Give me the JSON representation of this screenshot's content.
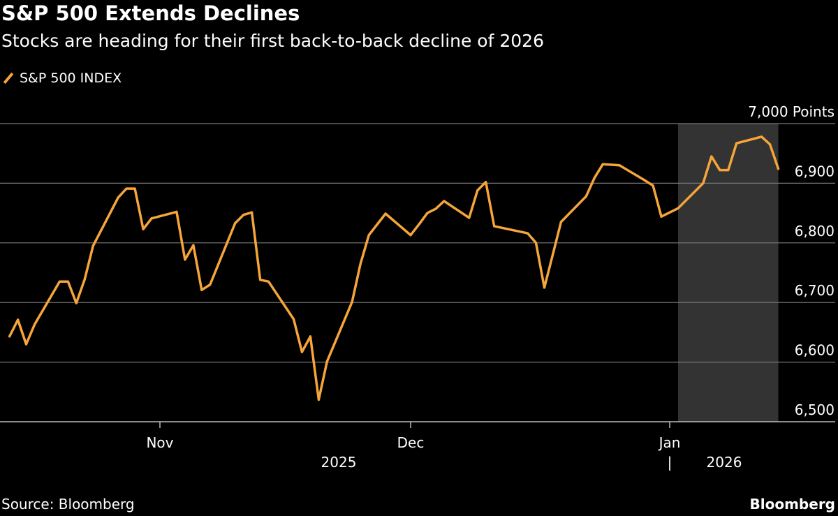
{
  "chart_data": {
    "type": "line",
    "title": "S&P 500 Extends Declines",
    "subtitle": "Stocks are heading for their first back-to-back decline of 2026",
    "ylabel": "Points",
    "ylim": [
      6500,
      7000
    ],
    "yticks": [
      6500,
      6600,
      6700,
      6800,
      6900,
      7000
    ],
    "ytick_labels": [
      "6,500",
      "6,600",
      "6,700",
      "6,800",
      "6,900",
      "7,000 Points"
    ],
    "xlim": [
      "2025-10-14",
      "2026-01-14"
    ],
    "xticks": [
      {
        "date": "2025-11-01",
        "label": "Nov"
      },
      {
        "date": "2025-12-01",
        "label": "Dec"
      },
      {
        "date": "2026-01-01",
        "label": "Jan"
      }
    ],
    "year_labels": [
      "2025",
      "|",
      "2026"
    ],
    "grid": "horizontal",
    "legend_position": "top-left",
    "highlight_range": [
      "2026-01-02",
      "2026-01-14"
    ],
    "colors": {
      "line": "#f6a53a",
      "highlight": "#333333",
      "grid": "#7a7a7a",
      "background": "#000000"
    },
    "series": [
      {
        "name": "S&P 500 INDEX",
        "x": [
          "2025-10-14",
          "2025-10-15",
          "2025-10-16",
          "2025-10-17",
          "2025-10-20",
          "2025-10-21",
          "2025-10-22",
          "2025-10-23",
          "2025-10-24",
          "2025-10-27",
          "2025-10-28",
          "2025-10-29",
          "2025-10-30",
          "2025-10-31",
          "2025-11-03",
          "2025-11-04",
          "2025-11-05",
          "2025-11-06",
          "2025-11-07",
          "2025-11-10",
          "2025-11-11",
          "2025-11-12",
          "2025-11-13",
          "2025-11-14",
          "2025-11-17",
          "2025-11-18",
          "2025-11-19",
          "2025-11-20",
          "2025-11-21",
          "2025-11-24",
          "2025-11-25",
          "2025-11-26",
          "2025-11-28",
          "2025-12-01",
          "2025-12-02",
          "2025-12-03",
          "2025-12-04",
          "2025-12-05",
          "2025-12-08",
          "2025-12-09",
          "2025-12-10",
          "2025-12-11",
          "2025-12-15",
          "2025-12-16",
          "2025-12-17",
          "2025-12-18",
          "2025-12-19",
          "2025-12-22",
          "2025-12-23",
          "2025-12-24",
          "2025-12-26",
          "2025-12-29",
          "2025-12-30",
          "2025-12-31",
          "2026-01-02",
          "2026-01-05",
          "2026-01-06",
          "2026-01-07",
          "2026-01-08",
          "2026-01-09",
          "2026-01-12",
          "2026-01-13",
          "2026-01-14"
        ],
        "values": [
          6643,
          6671,
          6630,
          6663,
          6735,
          6735,
          6699,
          6739,
          6795,
          6876,
          6891,
          6891,
          6823,
          6841,
          6852,
          6772,
          6796,
          6721,
          6730,
          6833,
          6847,
          6851,
          6738,
          6735,
          6672,
          6617,
          6643,
          6537,
          6601,
          6701,
          6765,
          6813,
          6849,
          6813,
          6831,
          6850,
          6857,
          6870,
          6842,
          6888,
          6902,
          6828,
          6816,
          6800,
          6725,
          6780,
          6835,
          6878,
          6909,
          6932,
          6930,
          6905,
          6896,
          6844,
          6858,
          6900,
          6945,
          6922,
          6922,
          6967,
          6978,
          6965,
          6924
        ]
      }
    ]
  },
  "footer": {
    "source": "Source: Bloomberg",
    "brand": "Bloomberg"
  }
}
